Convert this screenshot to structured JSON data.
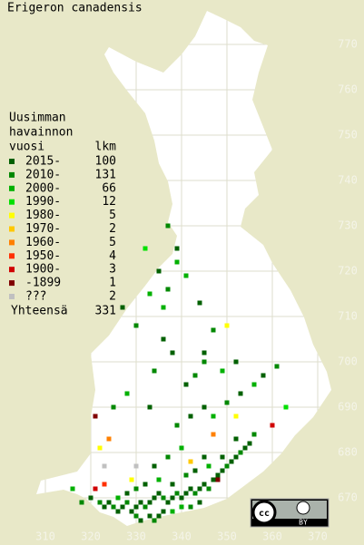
{
  "title": "Erigeron canadensis",
  "legend": {
    "header": [
      "Uusimman",
      "havainnon",
      "vuosi"
    ],
    "count_header": "lkm",
    "rows": [
      {
        "label": "2015-",
        "count": 100,
        "color": "#006000"
      },
      {
        "label": "2010-",
        "count": 131,
        "color": "#008800"
      },
      {
        "label": "2000-",
        "count": 66,
        "color": "#00b000"
      },
      {
        "label": "1990-",
        "count": 12,
        "color": "#00e000"
      },
      {
        "label": "1980-",
        "count": 5,
        "color": "#ffff00"
      },
      {
        "label": "1970-",
        "count": 2,
        "color": "#ffc800"
      },
      {
        "label": "1960-",
        "count": 5,
        "color": "#ff8000"
      },
      {
        "label": "1950-",
        "count": 4,
        "color": "#ff3000"
      },
      {
        "label": "1900-",
        "count": 3,
        "color": "#d00000"
      },
      {
        "label": "-1899",
        "count": 1,
        "color": "#800000"
      },
      {
        "label": "???",
        "count": 2,
        "color": "#c0c0c0"
      }
    ],
    "total_label": "Yhteensä",
    "total": 331
  },
  "xticks": [
    310,
    320,
    330,
    340,
    350,
    360,
    370
  ],
  "yticks": [
    670,
    680,
    690,
    700,
    710,
    720,
    730,
    740,
    750,
    760,
    770
  ],
  "license": {
    "icon": "cc",
    "label": "BY"
  },
  "squares": [
    [
      322,
      669,
      1
    ],
    [
      323,
      668,
      0
    ],
    [
      324,
      669,
      0
    ],
    [
      325,
      668,
      1
    ],
    [
      326,
      667,
      0
    ],
    [
      327,
      668,
      0
    ],
    [
      328,
      669,
      1
    ],
    [
      329,
      667,
      0
    ],
    [
      330,
      668,
      0
    ],
    [
      331,
      669,
      0
    ],
    [
      332,
      668,
      1
    ],
    [
      333,
      669,
      0
    ],
    [
      334,
      670,
      0
    ],
    [
      335,
      671,
      0
    ],
    [
      336,
      670,
      1
    ],
    [
      337,
      669,
      0
    ],
    [
      338,
      670,
      0
    ],
    [
      339,
      671,
      1
    ],
    [
      340,
      670,
      0
    ],
    [
      341,
      671,
      0
    ],
    [
      342,
      672,
      0
    ],
    [
      343,
      671,
      1
    ],
    [
      344,
      672,
      0
    ],
    [
      345,
      673,
      0
    ],
    [
      346,
      672,
      1
    ],
    [
      347,
      674,
      0
    ],
    [
      348,
      675,
      0
    ],
    [
      349,
      676,
      0
    ],
    [
      350,
      677,
      1
    ],
    [
      351,
      678,
      0
    ],
    [
      352,
      679,
      0
    ],
    [
      353,
      680,
      1
    ],
    [
      354,
      681,
      0
    ],
    [
      355,
      682,
      0
    ],
    [
      333,
      666,
      0
    ],
    [
      334,
      665,
      1
    ],
    [
      335,
      666,
      0
    ],
    [
      336,
      667,
      0
    ],
    [
      338,
      667,
      2
    ],
    [
      330,
      666,
      1
    ],
    [
      331,
      665,
      0
    ],
    [
      340,
      668,
      2
    ],
    [
      342,
      668,
      1
    ],
    [
      344,
      669,
      0
    ],
    [
      326,
      670,
      2
    ],
    [
      328,
      671,
      0
    ],
    [
      330,
      672,
      1
    ],
    [
      332,
      673,
      0
    ],
    [
      335,
      674,
      2
    ],
    [
      338,
      673,
      0
    ],
    [
      341,
      675,
      1
    ],
    [
      343,
      676,
      0
    ],
    [
      346,
      677,
      2
    ],
    [
      349,
      679,
      0
    ],
    [
      320,
      670,
      0
    ],
    [
      318,
      669,
      1
    ],
    [
      316,
      672,
      2
    ],
    [
      321,
      672,
      8
    ],
    [
      323,
      673,
      7
    ],
    [
      329,
      674,
      4
    ],
    [
      334,
      677,
      0
    ],
    [
      337,
      679,
      1
    ],
    [
      340,
      681,
      2
    ],
    [
      345,
      679,
      0
    ],
    [
      352,
      683,
      0
    ],
    [
      356,
      684,
      1
    ],
    [
      339,
      686,
      1
    ],
    [
      342,
      688,
      0
    ],
    [
      345,
      690,
      0
    ],
    [
      347,
      688,
      2
    ],
    [
      350,
      691,
      1
    ],
    [
      353,
      693,
      0
    ],
    [
      356,
      695,
      2
    ],
    [
      358,
      697,
      0
    ],
    [
      361,
      699,
      1
    ],
    [
      363,
      690,
      3
    ],
    [
      360,
      686,
      8
    ],
    [
      352,
      688,
      4
    ],
    [
      341,
      695,
      0
    ],
    [
      345,
      700,
      1
    ],
    [
      349,
      698,
      2
    ],
    [
      338,
      702,
      0
    ],
    [
      334,
      698,
      1
    ],
    [
      328,
      693,
      2
    ],
    [
      325,
      690,
      1
    ],
    [
      333,
      690,
      0
    ],
    [
      336,
      705,
      0
    ],
    [
      330,
      708,
      1
    ],
    [
      327,
      712,
      0
    ],
    [
      333,
      715,
      2
    ],
    [
      337,
      716,
      1
    ],
    [
      335,
      720,
      0
    ],
    [
      339,
      722,
      2
    ],
    [
      332,
      725,
      3
    ],
    [
      345,
      702,
      0
    ],
    [
      350,
      708,
      4
    ],
    [
      352,
      700,
      0
    ],
    [
      321,
      688,
      9
    ],
    [
      322,
      681,
      4
    ],
    [
      324,
      683,
      6
    ],
    [
      347,
      684,
      6
    ],
    [
      342,
      678,
      5
    ],
    [
      330,
      677,
      10
    ],
    [
      323,
      677,
      10
    ],
    [
      348,
      674,
      9
    ],
    [
      337,
      730,
      1
    ],
    [
      339,
      725,
      0
    ],
    [
      341,
      719,
      2
    ],
    [
      344,
      713,
      0
    ],
    [
      347,
      707,
      1
    ],
    [
      336,
      712,
      2
    ],
    [
      343,
      697,
      1
    ]
  ]
}
